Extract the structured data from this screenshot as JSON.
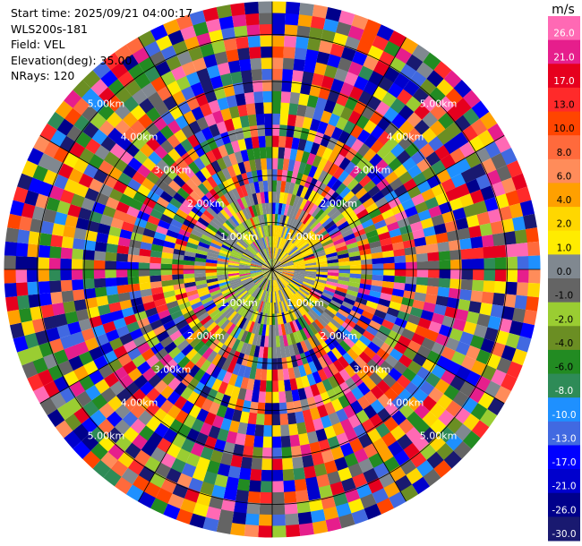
{
  "info": {
    "start_time": "Start time: 2025/09/21 04:00:17",
    "instrument": "WLS200s-181",
    "field": "Field: VEL",
    "elevation": "Elevation(deg): 35.00",
    "nrays": "NRays: 120"
  },
  "chart_data": {
    "type": "heatmap",
    "projection": "polar-ppi",
    "field": "VEL",
    "units": "m/s",
    "nrays": 120,
    "range_km_max": 5.7,
    "range_rings": [
      {
        "km": 1,
        "label": "1.00km"
      },
      {
        "km": 2,
        "label": "2.00km"
      },
      {
        "km": 3,
        "label": "3.00km"
      },
      {
        "km": 4,
        "label": "4.00km"
      },
      {
        "km": 5,
        "label": "5.00km"
      }
    ],
    "colorbar": {
      "title": "m/s",
      "ticks": [
        "26.0",
        "21.0",
        "17.0",
        "13.0",
        "10.0",
        "8.0",
        "6.0",
        "4.0",
        "2.0",
        "1.0",
        "0.0",
        "-1.0",
        "-2.0",
        "-4.0",
        "-6.0",
        "-8.0",
        "-10.0",
        "-13.0",
        "-17.0",
        "-21.0",
        "-26.0",
        "-30.0"
      ],
      "colors": [
        "#ff69b4",
        "#e61e8c",
        "#e6001e",
        "#ff2a2a",
        "#ff4500",
        "#ff6a3c",
        "#ff8c5a",
        "#ffa000",
        "#ffd700",
        "#ffec00",
        "#808890",
        "#646464",
        "#9acd32",
        "#6b8e23",
        "#228b22",
        "#2e8b57",
        "#1e90ff",
        "#4169e1",
        "#0000ff",
        "#0000cd",
        "#00008b",
        "#191970"
      ]
    }
  }
}
